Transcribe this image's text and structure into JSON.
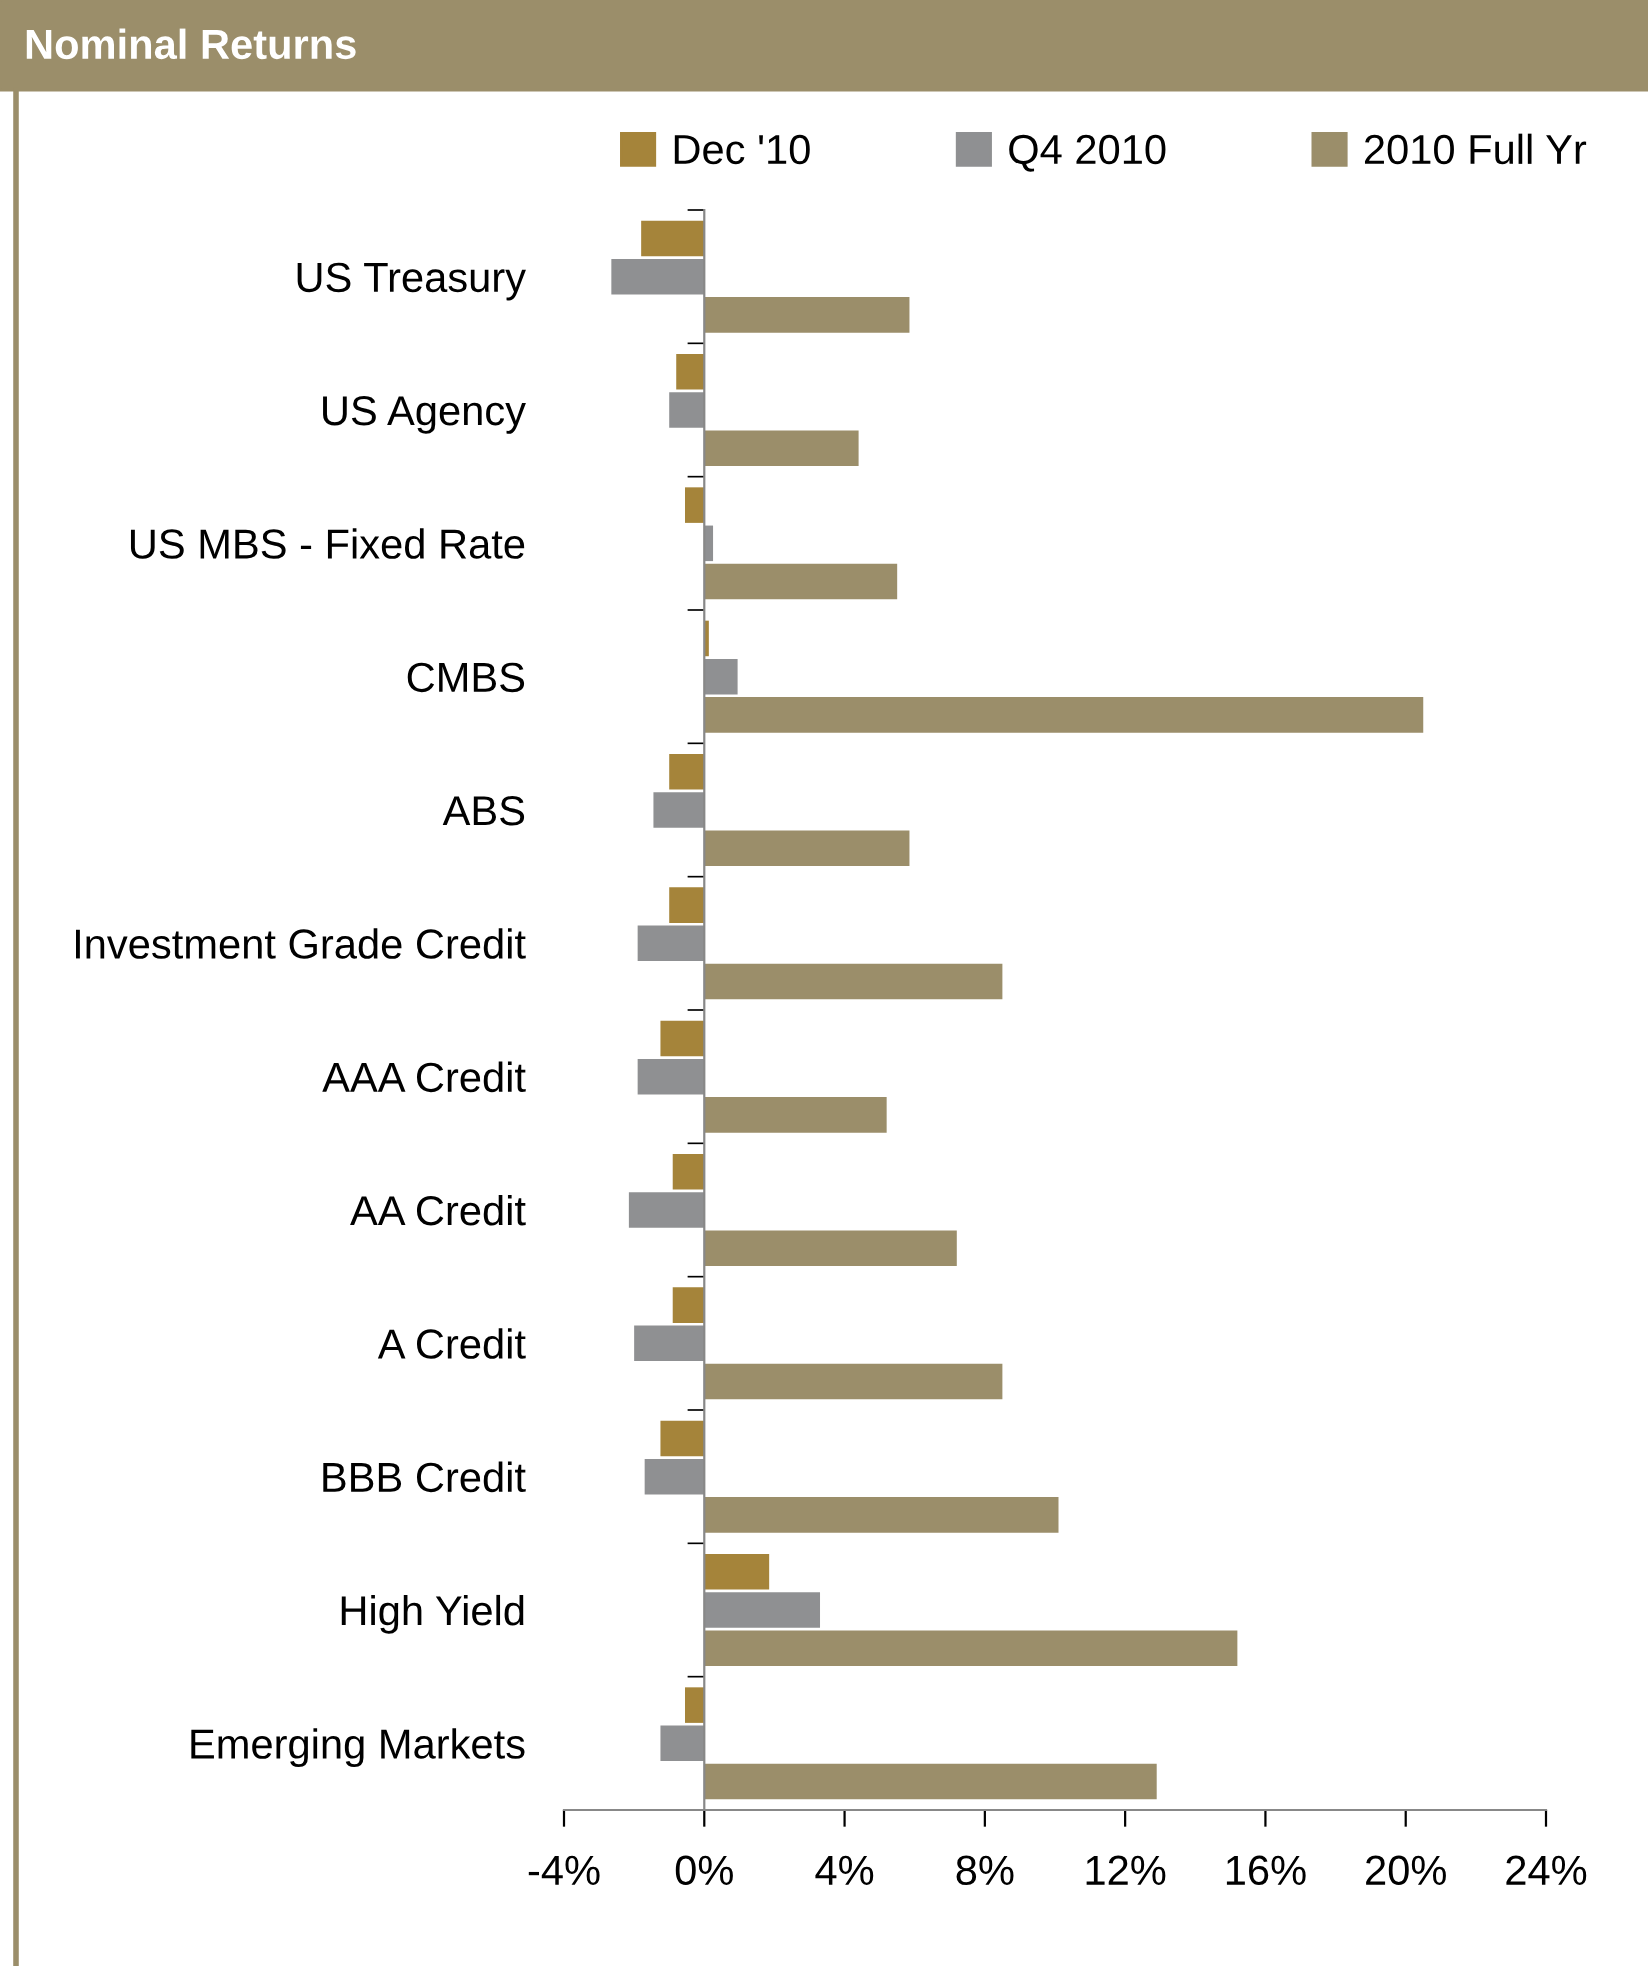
{
  "chart_data": {
    "type": "bar",
    "orientation": "horizontal",
    "title": "Nominal Returns",
    "categories": [
      "US Treasury",
      "US Agency",
      "US MBS - Fixed Rate",
      "CMBS",
      "ABS",
      "Investment Grade Credit",
      "AAA Credit",
      "AA Credit",
      "A Credit",
      "BBB Credit",
      "High Yield",
      "Emerging Markets"
    ],
    "series": [
      {
        "name": "Dec '10",
        "color": "#a5843a",
        "values": [
          -1.8,
          -0.8,
          -0.55,
          0.13,
          -1.0,
          -1.0,
          -1.25,
          -0.9,
          -0.9,
          -1.25,
          1.85,
          -0.55
        ]
      },
      {
        "name": "Q4 2010",
        "color": "#8f9092",
        "values": [
          -2.65,
          -1.0,
          0.25,
          0.95,
          -1.45,
          -1.9,
          -1.9,
          -2.15,
          -2.0,
          -1.7,
          3.3,
          -1.25
        ]
      },
      {
        "name": "2010 Full Yr",
        "color": "#9b8e6a",
        "values": [
          5.85,
          4.4,
          5.5,
          20.5,
          5.85,
          8.5,
          5.2,
          7.2,
          8.5,
          10.1,
          15.2,
          12.9
        ]
      }
    ],
    "xlim": [
      -4,
      24
    ],
    "xticks": [
      {
        "value": -4,
        "label": "-4%"
      },
      {
        "value": 0,
        "label": "0%"
      },
      {
        "value": 4,
        "label": "4%"
      },
      {
        "value": 8,
        "label": "8%"
      },
      {
        "value": 12,
        "label": "12%"
      },
      {
        "value": 16,
        "label": "16%"
      },
      {
        "value": 20,
        "label": "20%"
      },
      {
        "value": 24,
        "label": "24%"
      }
    ],
    "legend": "top"
  }
}
